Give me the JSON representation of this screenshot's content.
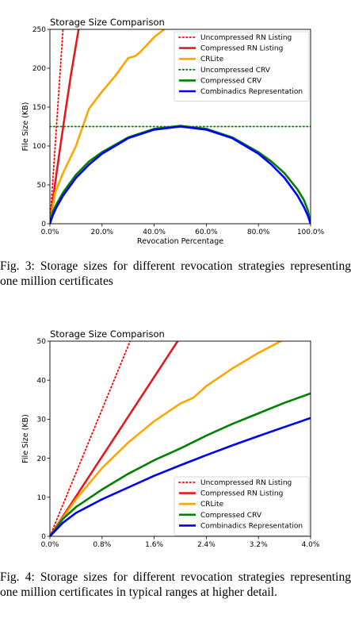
{
  "chart_data": [
    {
      "type": "line",
      "title": "Storage Size Comparison",
      "xlabel": "Revocation Percentage",
      "ylabel": "File Size (KB)",
      "xlim": [
        0,
        100
      ],
      "ylim": [
        0,
        250
      ],
      "x_ticks": [
        0,
        20,
        40,
        60,
        80,
        100
      ],
      "x_tick_labels": [
        "0.0%",
        "20.0%",
        "40.0%",
        "60.0%",
        "80.0%",
        "100.0%"
      ],
      "y_ticks": [
        0,
        50,
        100,
        150,
        200,
        250
      ],
      "y_tick_labels": [
        "0",
        "50",
        "100",
        "150",
        "200",
        "250"
      ],
      "legend_position": "upper-right",
      "series": [
        {
          "name": "Uncompressed RN Listing",
          "color": "#ff0000",
          "style": "dotted",
          "x": [
            0,
            4,
            5
          ],
          "y": [
            0,
            200,
            250
          ]
        },
        {
          "name": "Compressed RN Listing",
          "color": "#e31a1c",
          "style": "solid",
          "x": [
            0,
            2,
            4,
            6,
            8,
            10,
            11
          ],
          "y": [
            0,
            52,
            100,
            145,
            190,
            230,
            250
          ]
        },
        {
          "name": "CRLite",
          "color": "#ffa500",
          "style": "solid",
          "x": [
            0,
            2,
            5,
            10,
            15,
            20,
            25,
            30,
            33,
            35,
            40,
            45
          ],
          "y": [
            0,
            40,
            65,
            100,
            148,
            170,
            190,
            213,
            216,
            222,
            240,
            253
          ]
        },
        {
          "name": "Uncompressed CRV",
          "color": "#008000",
          "style": "dotted",
          "x": [
            0,
            100
          ],
          "y": [
            125,
            125
          ]
        },
        {
          "name": "Compressed CRV",
          "color": "#008000",
          "style": "solid",
          "x": [
            0,
            1,
            2.5,
            5,
            10,
            15,
            20,
            30,
            40,
            50,
            60,
            70,
            80,
            85,
            90,
            95,
            97.5,
            99,
            100
          ],
          "y": [
            0,
            15,
            25,
            40,
            63,
            80,
            92,
            111,
            122,
            126,
            122,
            111,
            92,
            80,
            65,
            44,
            30,
            17,
            0
          ]
        },
        {
          "name": "Combinadics Representation",
          "color": "#0000ff",
          "style": "solid",
          "x": [
            0,
            1,
            2.5,
            5,
            10,
            15,
            20,
            30,
            40,
            50,
            60,
            70,
            80,
            85,
            90,
            95,
            97.5,
            99,
            100
          ],
          "y": [
            0,
            10,
            21,
            36,
            59,
            76,
            90,
            110,
            121,
            125,
            121,
            110,
            90,
            76,
            59,
            36,
            21,
            10,
            0
          ]
        }
      ]
    },
    {
      "type": "line",
      "title": "Storage Size Comparison",
      "xlabel": "Revocation Percentage",
      "ylabel": "File Size (KB)",
      "xlim": [
        0,
        4
      ],
      "ylim": [
        0,
        50
      ],
      "x_ticks": [
        0,
        0.8,
        1.6,
        2.4,
        3.2,
        4.0
      ],
      "x_tick_labels": [
        "0.0%",
        "0.8%",
        "1.6%",
        "2.4%",
        "3.2%",
        "4.0%"
      ],
      "y_ticks": [
        0,
        10,
        20,
        30,
        40,
        50
      ],
      "y_tick_labels": [
        "0",
        "10",
        "20",
        "30",
        "40",
        "50"
      ],
      "legend_position": "lower-right",
      "series": [
        {
          "name": "Uncompressed RN Listing",
          "color": "#ff0000",
          "style": "dotted",
          "x": [
            0,
            1.23
          ],
          "y": [
            0,
            50
          ]
        },
        {
          "name": "Compressed RN Listing",
          "color": "#e31a1c",
          "style": "solid",
          "x": [
            0,
            1.96
          ],
          "y": [
            0,
            50
          ]
        },
        {
          "name": "CRLite",
          "color": "#ffa500",
          "style": "solid",
          "x": [
            0,
            0.4,
            0.8,
            1.2,
            1.6,
            2.0,
            2.2,
            2.4,
            2.8,
            3.2,
            3.6
          ],
          "y": [
            0,
            9.5,
            17.5,
            24,
            29.5,
            34,
            35.5,
            38.5,
            43,
            47,
            50.5
          ]
        },
        {
          "name": "Compressed CRV",
          "color": "#008000",
          "style": "solid",
          "x": [
            0,
            0.2,
            0.4,
            0.8,
            1.2,
            1.6,
            2.0,
            2.4,
            2.8,
            3.2,
            3.6,
            4.0
          ],
          "y": [
            0,
            4.5,
            7.5,
            12,
            16,
            19.5,
            22.5,
            25.8,
            28.8,
            31.5,
            34.2,
            36.6
          ]
        },
        {
          "name": "Combinadics Representation",
          "color": "#0000ff",
          "style": "solid",
          "x": [
            0,
            0.2,
            0.4,
            0.8,
            1.2,
            1.6,
            2.0,
            2.4,
            2.8,
            3.2,
            3.6,
            4.0
          ],
          "y": [
            0,
            3.5,
            6,
            9.5,
            12.5,
            15.5,
            18.2,
            20.8,
            23.3,
            25.7,
            28.0,
            30.3
          ]
        }
      ]
    }
  ],
  "captions": [
    "Fig. 3: Storage sizes for different revocation strategies representing one million certificates",
    "Fig. 4: Storage sizes for different revocation strategies representing one million certificates in typical ranges at higher detail."
  ],
  "icons": [
    "dotted-line-swatch",
    "solid-line-swatch"
  ]
}
